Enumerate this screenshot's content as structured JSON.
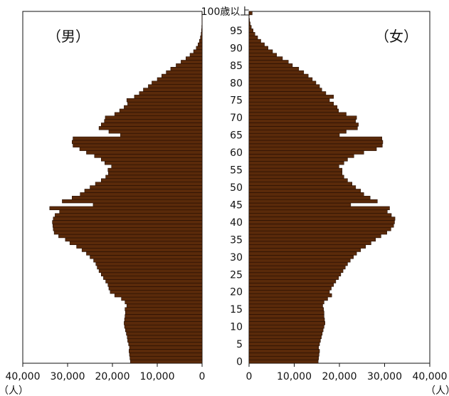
{
  "chart_data": {
    "type": "bar",
    "orientation": "horizontal-population-pyramid",
    "panel_labels": {
      "male": "（男）",
      "female": "（女）"
    },
    "unit_label": "（人）",
    "age_top_label": "100歳以上",
    "age_ticks": [
      "0",
      "5",
      "10",
      "15",
      "20",
      "25",
      "30",
      "35",
      "40",
      "45",
      "50",
      "55",
      "60",
      "65",
      "70",
      "75",
      "80",
      "85",
      "90",
      "95"
    ],
    "x_ticks_male": [
      "40,000",
      "30,000",
      "20,000",
      "10,000",
      "0"
    ],
    "x_ticks_female": [
      "0",
      "10,000",
      "20,000",
      "30,000",
      "40,000"
    ],
    "xlim": [
      0,
      40000
    ],
    "ages": [
      0,
      1,
      2,
      3,
      4,
      5,
      6,
      7,
      8,
      9,
      10,
      11,
      12,
      13,
      14,
      15,
      16,
      17,
      18,
      19,
      20,
      21,
      22,
      23,
      24,
      25,
      26,
      27,
      28,
      29,
      30,
      31,
      32,
      33,
      34,
      35,
      36,
      37,
      38,
      39,
      40,
      41,
      42,
      43,
      44,
      45,
      46,
      47,
      48,
      49,
      50,
      51,
      52,
      53,
      54,
      55,
      56,
      57,
      58,
      59,
      60,
      61,
      62,
      63,
      64,
      65,
      66,
      67,
      68,
      69,
      70,
      71,
      72,
      73,
      74,
      75,
      76,
      77,
      78,
      79,
      80,
      81,
      82,
      83,
      84,
      85,
      86,
      87,
      88,
      89,
      90,
      91,
      92,
      93,
      94,
      95,
      96,
      97,
      98,
      99,
      100
    ],
    "series": [
      {
        "name": "男",
        "color": "#5a2a0a",
        "values": [
          16000,
          16100,
          16200,
          16300,
          16200,
          16400,
          16600,
          16700,
          16900,
          17100,
          17300,
          17400,
          17300,
          17200,
          17100,
          17200,
          16800,
          17200,
          18000,
          19500,
          20500,
          20800,
          21000,
          21500,
          22000,
          22500,
          23000,
          23400,
          23700,
          24200,
          25000,
          25800,
          26800,
          28000,
          29500,
          30500,
          32000,
          33000,
          33200,
          33300,
          33400,
          33200,
          32800,
          31800,
          34000,
          24300,
          31200,
          29000,
          27200,
          26200,
          25000,
          23800,
          22500,
          21500,
          20900,
          21000,
          20200,
          21700,
          22500,
          24000,
          25800,
          27300,
          28800,
          29000,
          28800,
          18200,
          20800,
          23000,
          22500,
          21800,
          21600,
          19500,
          18400,
          17400,
          16600,
          16800,
          15100,
          14000,
          13100,
          12000,
          11200,
          10000,
          9000,
          8000,
          7000,
          5800,
          4700,
          3600,
          2700,
          1900,
          1300,
          900,
          600,
          380,
          220,
          130,
          70,
          35,
          15,
          6,
          2
        ]
      },
      {
        "name": "女",
        "color": "#5a2a0a",
        "values": [
          15300,
          15400,
          15500,
          15600,
          15400,
          15600,
          15800,
          16000,
          16200,
          16400,
          16600,
          16800,
          16700,
          16600,
          16600,
          16500,
          16300,
          16600,
          17400,
          18300,
          17800,
          18200,
          18700,
          19200,
          19800,
          20300,
          20800,
          21300,
          21800,
          22400,
          23100,
          23800,
          24700,
          25800,
          27000,
          28000,
          29200,
          30500,
          31400,
          32000,
          32200,
          32300,
          31500,
          30600,
          31100,
          22500,
          28400,
          26800,
          25400,
          24700,
          23600,
          22800,
          21800,
          21000,
          20600,
          20600,
          19900,
          21000,
          21800,
          23200,
          25400,
          28200,
          29500,
          29600,
          29400,
          20000,
          21500,
          24000,
          24200,
          23600,
          23800,
          21500,
          19800,
          19500,
          18700,
          17800,
          18700,
          17000,
          16100,
          15600,
          14800,
          14000,
          13100,
          12100,
          11000,
          9600,
          8700,
          7400,
          6100,
          5200,
          4200,
          3400,
          2600,
          1900,
          1300,
          900,
          500,
          250,
          110,
          30,
          700
        ]
      }
    ]
  }
}
